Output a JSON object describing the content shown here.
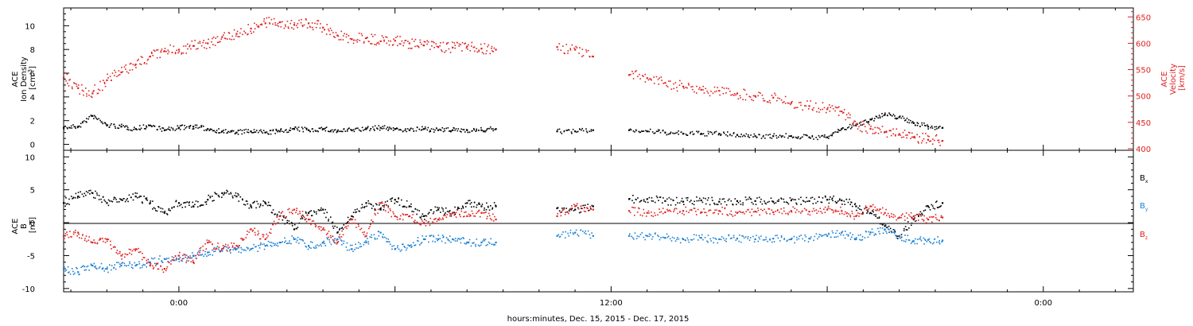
{
  "xaxis": {
    "label": "hours:minutes, Dec. 15, 2015 - Dec. 17, 2015",
    "range_hours": [
      -3.2,
      26.5
    ],
    "tick_labels": [
      {
        "hour": 0,
        "text": "0:00"
      },
      {
        "hour": 12,
        "text": "12:00"
      },
      {
        "hour": 24,
        "text": "0:00"
      }
    ]
  },
  "panels": {
    "top": {
      "left_label_lines": [
        "ACE",
        "Ion Density"
      ],
      "left_unit": "[cm",
      "left_unit_sup": "-3",
      "left_unit_end": "]",
      "right_label_lines": [
        "ACE",
        "Velocity"
      ],
      "right_unit": "[km/s]",
      "left_tick_labels": [
        "0",
        "2",
        "4",
        "6",
        "8",
        "10"
      ],
      "right_tick_labels": [
        "400",
        "450",
        "500",
        "550",
        "600",
        "650"
      ]
    },
    "bottom": {
      "label_lines": [
        "ACE",
        "B"
      ],
      "unit": "[nT]",
      "tick_labels": [
        "-10",
        "-5",
        "0",
        "5",
        "10"
      ],
      "legend": [
        {
          "base": "B",
          "sub": "x",
          "color": "#000000"
        },
        {
          "base": "B",
          "sub": "y",
          "color": "#1a7fd4"
        },
        {
          "base": "B",
          "sub": "z",
          "color": "#e02020"
        }
      ]
    }
  },
  "chart_data": [
    {
      "type": "scatter",
      "panel": "top",
      "title": "",
      "xlabel": "hours:minutes, Dec. 15, 2015 - Dec. 17, 2015",
      "xlim": [
        -3.2,
        26.5
      ],
      "y_axes": {
        "left": {
          "label": "ACE Ion Density [cm^-3]",
          "ylim": [
            -0.5,
            11.5
          ],
          "color": "#000000"
        },
        "right": {
          "label": "ACE Velocity [km/s]",
          "ylim": [
            397,
            667
          ],
          "color": "#e02020"
        }
      },
      "grid": false,
      "series": [
        {
          "axis": "left",
          "color": "#000000",
          "x": [
            -3.2,
            -2.8,
            -2.4,
            -2.0,
            -1.6,
            -1.2,
            -0.8,
            -0.4,
            0.0,
            0.4,
            0.8,
            1.2,
            1.6,
            2.0,
            2.4,
            2.8,
            3.2,
            3.6,
            4.0,
            4.4,
            4.8,
            5.2,
            5.6,
            6.0,
            6.4,
            6.8,
            7.2,
            7.6,
            8.0,
            8.4,
            8.8,
            10.5,
            11.0,
            11.5,
            12.5,
            13.0,
            13.5,
            14.0,
            14.5,
            15.0,
            15.5,
            16.0,
            16.5,
            17.0,
            17.5,
            18.0,
            18.4,
            18.8,
            19.2,
            19.6,
            20.0,
            20.4,
            20.8,
            21.2
          ],
          "values": [
            1.4,
            1.5,
            2.4,
            1.6,
            1.5,
            1.3,
            1.6,
            1.2,
            1.4,
            1.5,
            1.3,
            1.1,
            1.0,
            1.1,
            1.0,
            1.1,
            1.3,
            1.2,
            1.3,
            1.1,
            1.2,
            1.3,
            1.4,
            1.3,
            1.2,
            1.3,
            1.2,
            1.2,
            1.2,
            1.2,
            1.3,
            1.1,
            1.1,
            1.2,
            1.2,
            1.1,
            1.0,
            0.9,
            0.9,
            0.9,
            0.8,
            0.7,
            0.7,
            0.7,
            0.6,
            0.6,
            1.3,
            1.6,
            2.1,
            2.5,
            2.3,
            1.8,
            1.5,
            1.4
          ]
        },
        {
          "axis": "right",
          "color": "#e02020",
          "x": [
            -3.2,
            -2.8,
            -2.4,
            -2.0,
            -1.6,
            -1.2,
            -0.8,
            -0.4,
            0.0,
            0.4,
            0.8,
            1.2,
            1.6,
            2.0,
            2.4,
            2.8,
            3.2,
            3.6,
            4.0,
            4.4,
            4.8,
            5.2,
            5.6,
            6.0,
            6.4,
            6.8,
            7.2,
            7.6,
            8.0,
            8.4,
            8.8,
            10.5,
            11.0,
            11.5,
            12.5,
            13.0,
            13.5,
            14.0,
            14.5,
            15.0,
            15.5,
            16.0,
            16.5,
            17.0,
            17.5,
            18.0,
            18.4,
            18.8,
            19.2,
            19.6,
            20.0,
            20.4,
            20.8,
            21.2
          ],
          "values": [
            535,
            515,
            505,
            530,
            545,
            560,
            575,
            585,
            588,
            595,
            600,
            612,
            618,
            628,
            638,
            640,
            635,
            638,
            630,
            615,
            608,
            610,
            604,
            605,
            600,
            596,
            593,
            592,
            594,
            590,
            588,
            593,
            588,
            575,
            540,
            534,
            525,
            518,
            512,
            510,
            505,
            500,
            497,
            487,
            481,
            475,
            471,
            446,
            438,
            432,
            428,
            422,
            417,
            415
          ]
        }
      ]
    },
    {
      "type": "scatter",
      "panel": "bottom",
      "title": "",
      "xlabel": "hours:minutes, Dec. 15, 2015 - Dec. 17, 2015",
      "ylabel": "ACE B [nT]",
      "xlim": [
        -3.2,
        26.5
      ],
      "ylim": [
        -10.5,
        11
      ],
      "grid": false,
      "zero_line": true,
      "series": [
        {
          "name": "Bx",
          "color": "#000000",
          "x": [
            -3.2,
            -2.8,
            -2.4,
            -2.0,
            -1.6,
            -1.2,
            -0.8,
            -0.4,
            0.0,
            0.4,
            0.8,
            1.2,
            1.6,
            2.0,
            2.4,
            2.8,
            3.2,
            3.6,
            4.0,
            4.4,
            4.8,
            5.2,
            5.6,
            6.0,
            6.4,
            6.8,
            7.2,
            7.6,
            8.0,
            8.4,
            8.8,
            10.5,
            11.0,
            11.5,
            12.5,
            13.0,
            13.5,
            14.0,
            14.5,
            15.0,
            15.5,
            16.0,
            16.5,
            17.0,
            17.5,
            18.0,
            18.4,
            18.8,
            19.2,
            19.6,
            20.0,
            20.4,
            20.8,
            21.2
          ],
          "values": [
            3.0,
            4.0,
            4.5,
            3.0,
            3.5,
            4.0,
            3.0,
            1.5,
            3.0,
            2.5,
            3.5,
            4.5,
            4.0,
            2.5,
            3.0,
            1.0,
            -1.0,
            1.5,
            2.0,
            -1.5,
            1.0,
            3.0,
            2.0,
            3.5,
            2.5,
            1.0,
            2.0,
            1.5,
            3.0,
            2.5,
            2.5,
            2.2,
            2.0,
            2.5,
            3.6,
            3.6,
            3.3,
            3.2,
            3.4,
            3.2,
            3.3,
            3.3,
            3.2,
            3.4,
            3.3,
            3.5,
            3.4,
            2.5,
            1.5,
            -0.5,
            -2.0,
            0.5,
            2.5,
            3.0
          ]
        },
        {
          "name": "By",
          "color": "#1a7fd4",
          "x": [
            -3.2,
            -2.8,
            -2.4,
            -2.0,
            -1.6,
            -1.2,
            -0.8,
            -0.4,
            0.0,
            0.4,
            0.8,
            1.2,
            1.6,
            2.0,
            2.4,
            2.8,
            3.2,
            3.6,
            4.0,
            4.4,
            4.8,
            5.2,
            5.6,
            6.0,
            6.4,
            6.8,
            7.2,
            7.6,
            8.0,
            8.4,
            8.8,
            10.5,
            11.0,
            11.5,
            12.5,
            13.0,
            13.5,
            14.0,
            14.5,
            15.0,
            15.5,
            16.0,
            16.5,
            17.0,
            17.5,
            18.0,
            18.4,
            18.8,
            19.2,
            19.6,
            20.0,
            20.4,
            20.8,
            21.2
          ],
          "values": [
            -7.0,
            -7.5,
            -6.5,
            -7.0,
            -6.5,
            -6.5,
            -6.0,
            -5.5,
            -5.5,
            -5.0,
            -4.5,
            -4.0,
            -4.0,
            -4.0,
            -3.5,
            -3.0,
            -2.5,
            -3.5,
            -3.0,
            -2.5,
            -4.0,
            -3.0,
            -1.5,
            -4.0,
            -3.5,
            -2.5,
            -2.5,
            -2.5,
            -3.0,
            -3.0,
            -3.0,
            -2.0,
            -1.5,
            -2.0,
            -2.0,
            -2.0,
            -2.3,
            -2.5,
            -2.3,
            -2.5,
            -2.4,
            -2.5,
            -2.4,
            -2.5,
            -2.4,
            -2.0,
            -1.5,
            -2.5,
            -1.5,
            -1.0,
            -2.0,
            -2.8,
            -2.6,
            -2.7
          ]
        },
        {
          "name": "Bz",
          "color": "#e02020",
          "x": [
            -3.2,
            -2.8,
            -2.4,
            -2.0,
            -1.6,
            -1.2,
            -0.8,
            -0.4,
            0.0,
            0.4,
            0.8,
            1.2,
            1.6,
            2.0,
            2.4,
            2.8,
            3.2,
            3.6,
            4.0,
            4.4,
            4.8,
            5.2,
            5.6,
            6.0,
            6.4,
            6.8,
            7.2,
            7.6,
            8.0,
            8.4,
            8.8,
            10.5,
            11.0,
            11.5,
            12.5,
            13.0,
            13.5,
            14.0,
            14.5,
            15.0,
            15.5,
            16.0,
            16.5,
            17.0,
            17.5,
            18.0,
            18.4,
            18.8,
            19.2,
            19.6,
            20.0,
            20.4,
            20.8,
            21.2
          ],
          "values": [
            -2.0,
            -1.5,
            -3.0,
            -2.5,
            -5.0,
            -4.0,
            -6.5,
            -7.0,
            -5.0,
            -6.0,
            -3.0,
            -4.0,
            -3.5,
            -1.0,
            -2.5,
            1.0,
            2.0,
            0.5,
            -1.0,
            -3.0,
            0.5,
            -2.0,
            3.0,
            1.0,
            1.0,
            0.0,
            0.5,
            1.5,
            1.0,
            1.5,
            0.5,
            1.0,
            2.5,
            2.0,
            1.8,
            1.5,
            1.6,
            1.8,
            1.6,
            1.8,
            1.5,
            1.7,
            1.6,
            1.8,
            1.7,
            2.0,
            1.8,
            1.0,
            2.5,
            1.5,
            0.8,
            1.0,
            0.5,
            0.8
          ]
        }
      ]
    }
  ]
}
